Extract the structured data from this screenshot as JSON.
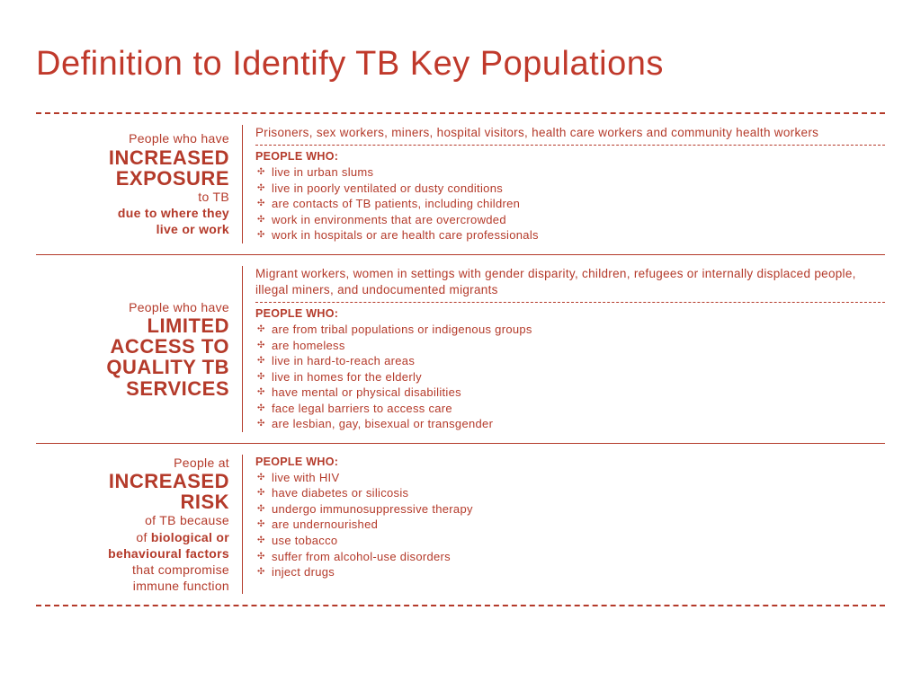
{
  "title": "Definition to Identify TB Key Populations",
  "colors": {
    "primary": "#b43a2a",
    "title": "#c0392b",
    "background": "#ffffff"
  },
  "sections": [
    {
      "left": {
        "l1": "People who have",
        "big1": "INCREASED",
        "big2": "EXPOSURE",
        "l2": "to TB",
        "l3a": "due to where they",
        "l3b": "live or work"
      },
      "intro": "Prisoners, sex workers, miners, hospital visitors, health care workers and community health workers",
      "peopleWho": "PEOPLE WHO:",
      "items": [
        "live in urban slums",
        "live in poorly ventilated or dusty conditions",
        "are contacts of TB patients, including children",
        "work in environments that are overcrowded",
        "work in hospitals or are health care professionals"
      ]
    },
    {
      "left": {
        "l1": "People who have",
        "big1": "LIMITED",
        "big2": "ACCESS TO",
        "big3": "QUALITY TB",
        "big4": "SERVICES"
      },
      "intro": "Migrant workers, women in settings with gender disparity, children, refugees or internally displaced people, illegal miners, and undocumented migrants",
      "peopleWho": "PEOPLE WHO:",
      "items": [
        "are from tribal populations or indigenous groups",
        "are homeless",
        "live in hard-to-reach areas",
        "live in homes for the elderly",
        "have mental or physical disabilities",
        "face legal barriers to access care",
        "are lesbian, gay, bisexual or transgender"
      ]
    },
    {
      "left": {
        "l1": "People at",
        "big1": "INCREASED",
        "big2": "RISK",
        "l2": "of TB because",
        "l3a": "of ",
        "l3bold": "biological or",
        "l4bold": "behavioural factors",
        "l5": "that compromise",
        "l6": "immune function"
      },
      "peopleWho": "PEOPLE WHO:",
      "items": [
        "live with HIV",
        "have diabetes or silicosis",
        "undergo immunosuppressive therapy",
        "are undernourished",
        "use tobacco",
        "suffer from alcohol-use disorders",
        "inject drugs"
      ]
    }
  ]
}
